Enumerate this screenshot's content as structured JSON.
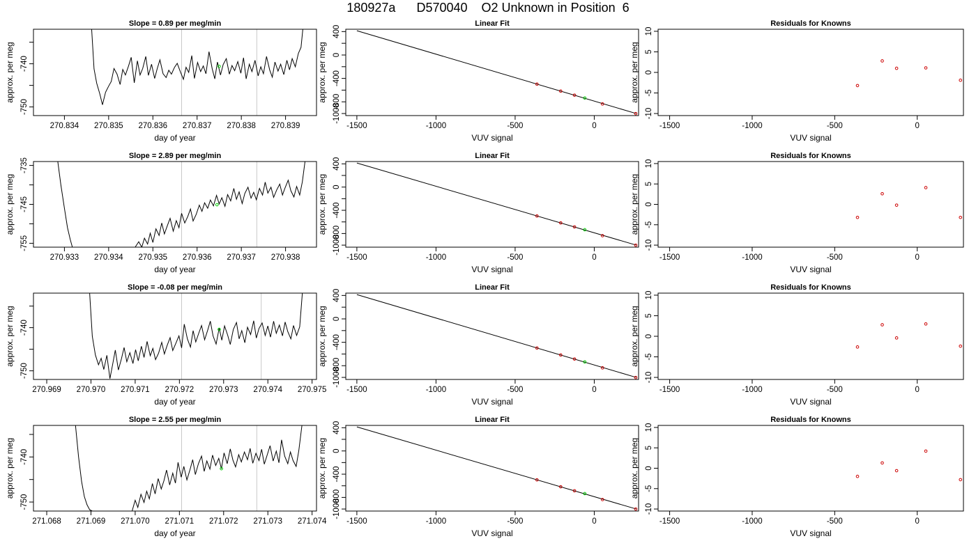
{
  "page_title": "180927a      D570040    O2 Unknown in Position  6",
  "chart_data": [
    {
      "type": "line",
      "row": 0,
      "col": 0,
      "title": "Slope =  0.89  per meg/min",
      "xlabel": "day of year",
      "ylabel": "approx. per meg",
      "xlim": [
        270.8333,
        270.8397
      ],
      "ylim": [
        -752,
        -732
      ],
      "xticks": [
        270.834,
        270.835,
        270.836,
        270.837,
        270.838,
        270.839
      ],
      "xtick_labels": [
        "270.834",
        "270.835",
        "270.836",
        "270.837",
        "270.838",
        "270.839"
      ],
      "yticks": [
        -750,
        -745,
        -740,
        -735
      ],
      "ytick_labels": [
        "-750",
        "",
        "-740",
        ""
      ],
      "vlines": [
        270.83665,
        270.83835
      ],
      "series": [
        {
          "x": [
            270.83461,
            270.83467,
            270.83473,
            270.8348,
            270.83486,
            270.83493,
            270.835,
            270.83506,
            270.83512,
            270.83519,
            270.83526,
            270.83532,
            270.83538,
            270.83545,
            270.83551,
            270.83558,
            270.83565,
            270.83571,
            270.83577,
            270.83584,
            270.8359,
            270.83597,
            270.83604,
            270.8361,
            270.83616,
            270.83623,
            270.8363,
            270.83636,
            270.83642,
            270.83649,
            270.83655,
            270.83662,
            270.83669,
            270.83675,
            270.83681,
            270.83688,
            270.83694,
            270.83701,
            270.83708,
            270.83714,
            270.8372,
            270.83727,
            270.83734,
            270.8374,
            270.83746,
            270.83753,
            270.83759,
            270.83766,
            270.83773,
            270.83779,
            270.83785,
            270.83792,
            270.83799,
            270.83805,
            270.83811,
            270.83818,
            270.83824,
            270.83831,
            270.83838,
            270.83844,
            270.8385,
            270.83857,
            270.83864,
            270.8387,
            270.83876,
            270.83883,
            270.83889,
            270.83896,
            270.83903,
            270.83909,
            270.83915,
            270.83922,
            270.83929,
            270.83935,
            270.8394
          ],
          "y": [
            -731,
            -741.2,
            -744.5,
            -747,
            -749.5,
            -746.6,
            -745.2,
            -744.1,
            -741.1,
            -742.4,
            -744.8,
            -741.3,
            -742.6,
            -740.5,
            -738.5,
            -744.4,
            -739.3,
            -742.6,
            -741.1,
            -738.3,
            -742.7,
            -740.1,
            -743.4,
            -741.1,
            -739.1,
            -742.3,
            -743.2,
            -741.5,
            -742.4,
            -740.8,
            -739.9,
            -741.8,
            -743.6,
            -740.8,
            -742,
            -738.1,
            -743.4,
            -739.7,
            -741.8,
            -740.5,
            -742.3,
            -737.2,
            -741.1,
            -743.5,
            -739.6,
            -742.6,
            -740.2,
            -738.8,
            -742.4,
            -740.4,
            -741.6,
            -739.5,
            -742.2,
            -738.6,
            -743.5,
            -740.1,
            -741.8,
            -739.2,
            -742.8,
            -740.7,
            -742.3,
            -738.3,
            -741.4,
            -743.1,
            -739.6,
            -741.7,
            -740.1,
            -742.5,
            -739.2,
            -741.4,
            -738.8,
            -740.7,
            -737.6,
            -736.2,
            -731
          ]
        }
      ],
      "marker": {
        "x": 270.8375,
        "y": -740.6,
        "color": "#00cc00"
      }
    },
    {
      "type": "line",
      "row": 1,
      "col": 0,
      "title": "Slope =  2.89  per meg/min",
      "xlabel": "day of year",
      "ylabel": "approx. per meg",
      "xlim": [
        270.9323,
        270.9387
      ],
      "ylim": [
        -756,
        -734
      ],
      "xticks": [
        270.933,
        270.934,
        270.935,
        270.936,
        270.937,
        270.938
      ],
      "xtick_labels": [
        "270.933",
        "270.934",
        "270.935",
        "270.936",
        "270.937",
        "270.938"
      ],
      "yticks": [
        -755,
        -750,
        -745,
        -740,
        -735
      ],
      "ytick_labels": [
        "-755",
        "",
        "-745",
        "",
        "-735"
      ],
      "vlines": [
        270.93565,
        270.93735
      ],
      "series": [
        {
          "x": [
            270.93285,
            270.93292,
            270.933,
            270.93307,
            270.93313,
            270.93318,
            270.9346,
            270.93468,
            270.93475,
            270.93481,
            270.93488,
            270.93494,
            270.935,
            270.93507,
            270.93514,
            270.9352,
            270.93526,
            270.93533,
            270.93539,
            270.93546,
            270.93553,
            270.93559,
            270.93565,
            270.93572,
            270.93579,
            270.93585,
            270.93591,
            270.93598,
            270.93605,
            270.93611,
            270.93617,
            270.93624,
            270.9363,
            270.93637,
            270.93644,
            270.9365,
            270.93656,
            270.93663,
            270.93669,
            270.93676,
            270.93683,
            270.93689,
            270.93695,
            270.93702,
            270.93708,
            270.93715,
            270.93722,
            270.93728,
            270.93734,
            270.93741,
            270.93748,
            270.93754,
            270.9376,
            270.93767,
            270.93773,
            270.9378,
            270.93787,
            270.93793,
            270.93799,
            270.93806,
            270.93812,
            270.93819,
            270.93825,
            270.93832,
            270.93838,
            270.93844
          ],
          "y": [
            -734,
            -740,
            -746,
            -751,
            -754,
            -756,
            -756,
            -754.6,
            -756,
            -753.7,
            -755.2,
            -752.4,
            -754.8,
            -751.3,
            -753,
            -749.8,
            -752.6,
            -750.4,
            -748.6,
            -751.9,
            -749.2,
            -751,
            -747.3,
            -749.8,
            -748.1,
            -746.2,
            -749.3,
            -747.6,
            -745.2,
            -746.8,
            -744.6,
            -746,
            -743.9,
            -745.4,
            -742.7,
            -744.9,
            -743.3,
            -745.5,
            -742.5,
            -744.1,
            -740.9,
            -743.7,
            -741.8,
            -744.8,
            -742.2,
            -740.6,
            -743.4,
            -741.9,
            -743.8,
            -740.9,
            -742.6,
            -739.3,
            -742.1,
            -740.6,
            -743.2,
            -741.3,
            -739.8,
            -742.6,
            -740.7,
            -738.8,
            -741.5,
            -743.1,
            -740.4,
            -742.6,
            -739.2,
            -734
          ]
        }
      ],
      "marker": {
        "x": 270.93645,
        "y": -745.1,
        "color": "#00cc00"
      }
    },
    {
      "type": "line",
      "row": 2,
      "col": 0,
      "title": "Slope =  -0.08  per meg/min",
      "xlabel": "day of year",
      "ylabel": "approx. per meg",
      "xlim": [
        270.9687,
        270.9751
      ],
      "ylim": [
        -752,
        -732
      ],
      "xticks": [
        270.969,
        270.97,
        270.971,
        270.972,
        270.973,
        270.974,
        270.975
      ],
      "xtick_labels": [
        "270.969",
        "270.970",
        "270.971",
        "270.972",
        "270.973",
        "270.974",
        "270.975"
      ],
      "yticks": [
        -750,
        -745,
        -740,
        -735
      ],
      "ytick_labels": [
        "-750",
        "",
        "-740",
        ""
      ],
      "vlines": [
        270.97205,
        270.97385
      ],
      "series": [
        {
          "x": [
            270.96997,
            270.97003,
            270.9701,
            270.97017,
            270.97023,
            270.97029,
            270.97036,
            270.97043,
            270.97049,
            270.97055,
            270.97062,
            270.97069,
            270.97075,
            270.97081,
            270.97088,
            270.97095,
            270.97101,
            270.97107,
            270.97114,
            270.9712,
            270.97127,
            270.97134,
            270.9714,
            270.97146,
            270.97153,
            270.9716,
            270.97166,
            270.97172,
            270.97179,
            270.97185,
            270.97192,
            270.97199,
            270.97205,
            270.97211,
            270.97218,
            270.97225,
            270.97231,
            270.97237,
            270.97244,
            270.9725,
            270.97257,
            270.97264,
            270.9727,
            270.97276,
            270.97283,
            270.9729,
            270.97296,
            270.97302,
            270.97309,
            270.97315,
            270.97322,
            270.97329,
            270.97335,
            270.97341,
            270.97348,
            270.97354,
            270.97361,
            270.97368,
            270.97374,
            270.9738,
            270.97387,
            270.97394,
            270.974,
            270.97406,
            270.97413,
            270.97419,
            270.97426,
            270.97433,
            270.97439,
            270.97445,
            270.97452,
            270.97458,
            270.97465,
            270.97472,
            270.97478
          ],
          "y": [
            -732,
            -742,
            -746.3,
            -748.6,
            -747.1,
            -749.7,
            -746.4,
            -751.8,
            -748.5,
            -745.2,
            -749.8,
            -747.2,
            -744.6,
            -747.9,
            -745.8,
            -748.3,
            -745.1,
            -747.7,
            -744.3,
            -746.9,
            -743.2,
            -746.5,
            -744.8,
            -747.4,
            -745.9,
            -743.4,
            -746.1,
            -744.2,
            -742.3,
            -745.3,
            -743.6,
            -741.9,
            -744.7,
            -739.2,
            -742.6,
            -744.5,
            -740.7,
            -743.3,
            -741.2,
            -739.5,
            -742.8,
            -740.6,
            -738.5,
            -741.9,
            -743.8,
            -740.1,
            -742.9,
            -739.6,
            -741.7,
            -743.9,
            -740.4,
            -738.8,
            -742.6,
            -740.7,
            -743.5,
            -739.9,
            -741.6,
            -738.4,
            -742.4,
            -740.2,
            -738.9,
            -741.8,
            -739.6,
            -742.2,
            -738.5,
            -741.3,
            -739.4,
            -741.9,
            -738.7,
            -740.9,
            -742.6,
            -739.5,
            -741.8,
            -739.8,
            -732
          ]
        }
      ],
      "marker": {
        "x": 270.9729,
        "y": -740.4,
        "color": "#00cc00"
      }
    },
    {
      "type": "line",
      "row": 3,
      "col": 0,
      "title": "Slope =  2.55  per meg/min",
      "xlabel": "day of year",
      "ylabel": "approx. per meg",
      "xlim": [
        271.0677,
        271.0741
      ],
      "ylim": [
        -752,
        -733
      ],
      "xticks": [
        271.068,
        271.069,
        271.07,
        271.071,
        271.072,
        271.073,
        271.074
      ],
      "xtick_labels": [
        "271.068",
        "271.069",
        "271.070",
        "271.071",
        "271.072",
        "271.073",
        "271.074"
      ],
      "yticks": [
        -750,
        -745,
        -740,
        -735
      ],
      "ytick_labels": [
        "-750",
        "",
        "-740",
        ""
      ],
      "vlines": [
        271.07105,
        271.07275
      ],
      "series": [
        {
          "x": [
            271.06865,
            271.06872,
            271.06879,
            271.06885,
            271.06891,
            271.06897,
            271.06903,
            271.06993,
            271.07,
            271.07006,
            271.07013,
            271.0702,
            271.07026,
            271.07032,
            271.07039,
            271.07045,
            271.07052,
            271.07059,
            271.07065,
            271.07071,
            271.07078,
            271.07085,
            271.07091,
            271.07097,
            271.07104,
            271.0711,
            271.07117,
            271.07124,
            271.0713,
            271.07136,
            271.07143,
            271.0715,
            271.07156,
            271.07162,
            271.07169,
            271.07175,
            271.07182,
            271.07189,
            271.07195,
            271.07201,
            271.07208,
            271.07215,
            271.07221,
            271.07227,
            271.07234,
            271.0724,
            271.07247,
            271.07254,
            271.0726,
            271.07266,
            271.07273,
            271.0728,
            271.07286,
            271.07292,
            271.07299,
            271.07305,
            271.07312,
            271.07319,
            271.07325,
            271.07331,
            271.07338,
            271.07345,
            271.07351,
            271.07357,
            271.07364,
            271.0737,
            271.07377
          ],
          "y": [
            -733,
            -740,
            -745.5,
            -748.8,
            -750.6,
            -751.7,
            -752,
            -752,
            -749.6,
            -751.2,
            -748.3,
            -750.1,
            -747.6,
            -749.3,
            -745.9,
            -748.2,
            -744.8,
            -747.1,
            -745.3,
            -742.9,
            -746.2,
            -743.6,
            -745.8,
            -741.2,
            -744.5,
            -742.1,
            -745.1,
            -742.8,
            -740.6,
            -743.9,
            -741.5,
            -739.8,
            -743.2,
            -740.9,
            -742.7,
            -739.6,
            -741.9,
            -740.3,
            -742.6,
            -739.1,
            -741.5,
            -738.2,
            -740.7,
            -742.2,
            -739.5,
            -741.1,
            -738.9,
            -740.6,
            -738.1,
            -741.4,
            -739.2,
            -740.8,
            -738.3,
            -741.6,
            -739.4,
            -737.5,
            -740.9,
            -738.7,
            -741.3,
            -736.2,
            -739.8,
            -741.5,
            -738.9,
            -740.8,
            -742.1,
            -738.6,
            -733
          ]
        }
      ],
      "marker": {
        "x": 271.07195,
        "y": -742.6,
        "color": "#00cc00"
      }
    },
    {
      "type": "scatter",
      "subtype": "linear-fit",
      "col": 1,
      "rows": [
        0,
        1,
        2,
        3
      ],
      "title": "Linear Fit",
      "xlabel": "VUV signal",
      "ylabel": "approx. per meg",
      "xlim": [
        -1570,
        280
      ],
      "ylim": [
        -1035,
        440
      ],
      "xticks": [
        -1500,
        -1000,
        -500,
        0
      ],
      "xtick_labels": [
        "-1500",
        "-1000",
        "-500",
        "0"
      ],
      "yticks": [
        400,
        200,
        0,
        -200,
        -400,
        -600,
        -800,
        -1000
      ],
      "ytick_labels": [
        "400",
        "",
        "0",
        "",
        "-400",
        "",
        "-800",
        "-1000"
      ],
      "line": {
        "x": [
          -1500,
          265
        ],
        "y": [
          415,
          -1000
        ]
      },
      "knowns": {
        "x": [
          -362,
          -212,
          -125,
          52,
          262
        ],
        "y": [
          -498,
          -617,
          -686,
          -837,
          -1001
        ],
        "color": "#cc0000"
      },
      "unknown": {
        "x": -60,
        "y": -735,
        "color": "#00cc00"
      }
    },
    {
      "type": "scatter",
      "subtype": "residuals",
      "col": 2,
      "rows": [
        0,
        1,
        2,
        3
      ],
      "title": "Residuals for Knowns",
      "xlabel": "VUV signal",
      "ylabel": "approx. per meg",
      "xlim": [
        -1570,
        280
      ],
      "ylim": [
        -10.5,
        10.5
      ],
      "xticks": [
        -1500,
        -1000,
        -500,
        0
      ],
      "xtick_labels": [
        "-1500",
        "-1000",
        "-500",
        "0"
      ],
      "yticks": [
        10,
        5,
        0,
        -5,
        -10
      ],
      "ytick_labels": [
        "10",
        "5",
        "0",
        "-5",
        "-10"
      ],
      "x": [
        -362,
        -212,
        -125,
        52,
        262
      ],
      "series": [
        {
          "y": [
            -3.2,
            2.8,
            1.0,
            1.1,
            -1.9
          ]
        },
        {
          "y": [
            -3.2,
            2.6,
            -0.2,
            4.1,
            -3.2
          ]
        },
        {
          "y": [
            -2.6,
            2.8,
            -0.4,
            3.0,
            -2.4
          ]
        },
        {
          "y": [
            -2.0,
            1.3,
            -0.6,
            4.2,
            -2.8
          ]
        }
      ],
      "color": "#cc0000"
    }
  ]
}
